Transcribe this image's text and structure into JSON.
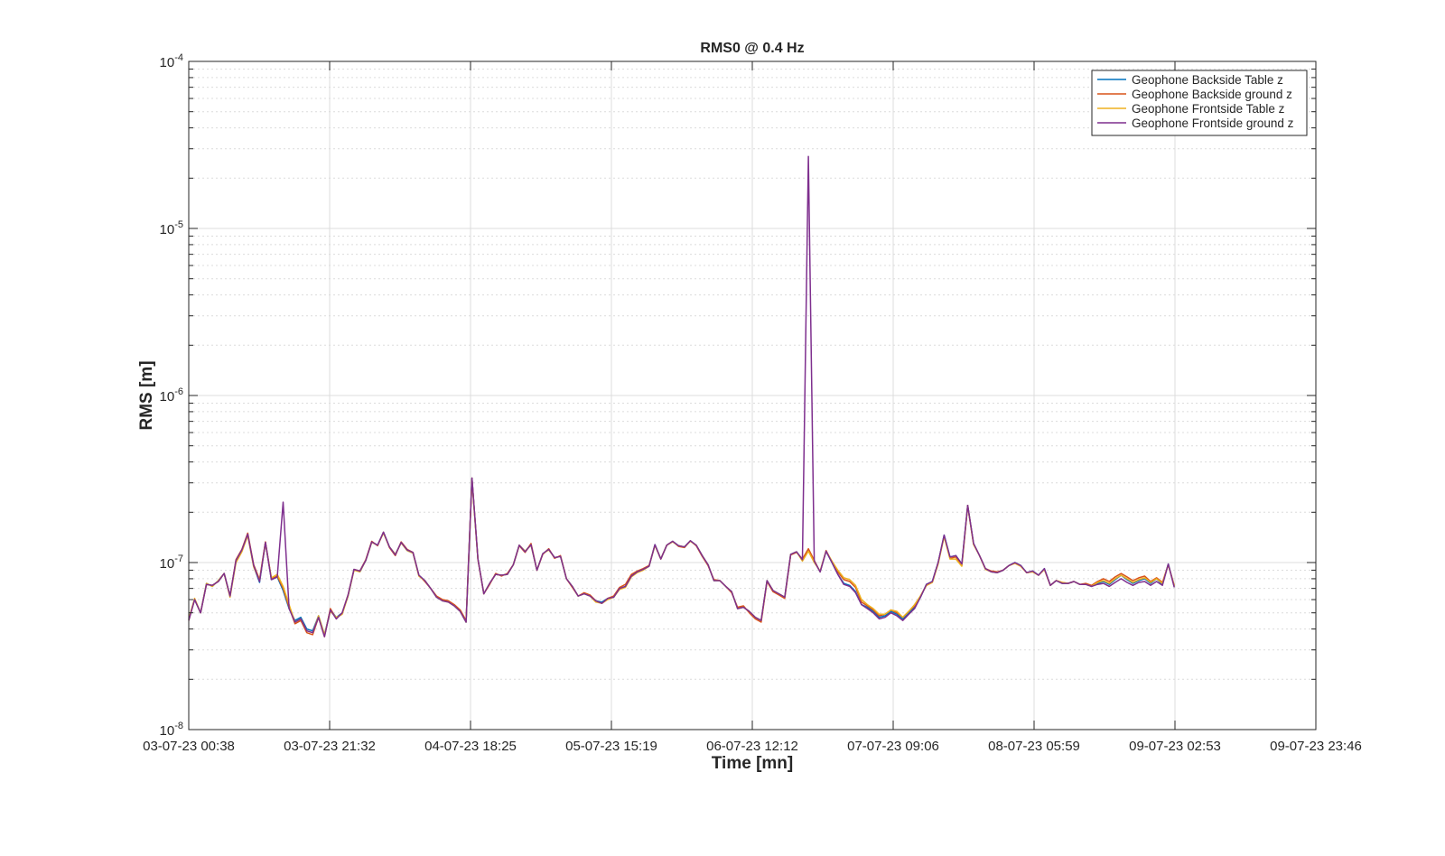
{
  "chart_data": {
    "type": "line",
    "title": "RMS0 @ 0.4 Hz",
    "xlabel": "Time [mn]",
    "ylabel": "RMS [m]",
    "yscale": "log",
    "ylim": [
      1e-08,
      0.0001
    ],
    "yticks": [
      {
        "value": 1e-08,
        "base": "10",
        "exp": "-8"
      },
      {
        "value": 1e-07,
        "base": "10",
        "exp": "-7"
      },
      {
        "value": 1e-06,
        "base": "10",
        "exp": "-6"
      },
      {
        "value": 1e-05,
        "base": "10",
        "exp": "-5"
      },
      {
        "value": 0.0001,
        "base": "10",
        "exp": "-4"
      }
    ],
    "xticks": [
      "03-07-23 00:38",
      "03-07-23 21:32",
      "04-07-23 18:25",
      "05-07-23 15:19",
      "06-07-23 12:12",
      "07-07-23 09:06",
      "08-07-23 05:59",
      "09-07-23 02:53",
      "09-07-23 23:46"
    ],
    "grid": true,
    "legend_position": "top-right",
    "x_hours": [
      0,
      0.875,
      1.75,
      2.625,
      3.5,
      4.375,
      5.25,
      6.125,
      7,
      7.875,
      8.75,
      9.625,
      10.5,
      11.375,
      12.25,
      13.125,
      14,
      14.875,
      15.75,
      16.625,
      17.5,
      18.375,
      19.25,
      20.125,
      21,
      21.875,
      22.75,
      23.625,
      24.5,
      25.375,
      26.25,
      27.125,
      28,
      28.875,
      29.75,
      30.625,
      31.5,
      32.375,
      33.25,
      34.125,
      35,
      35.875,
      36.75,
      37.625,
      38.5,
      39.375,
      40.25,
      41.125,
      42,
      42.875,
      43.75,
      44.625,
      45.5,
      46.375,
      47.25,
      48.125,
      49,
      49.875,
      50.75,
      51.625,
      52.5,
      53.375,
      54.25,
      55.125,
      56,
      56.875,
      57.75,
      58.625,
      59.5,
      60.375,
      61.25,
      62.125,
      63,
      63.875,
      64.75,
      65.625,
      66.5,
      67.375,
      68.25,
      69.125,
      70,
      70.875,
      71.75,
      72.625,
      73.5,
      74.375,
      75.25,
      76.125,
      77,
      77.875,
      78.75,
      79.625,
      80.5,
      81.375,
      82.25,
      83.125,
      84,
      84.875,
      85.75,
      86.625,
      87.5,
      88.375,
      89.25,
      90.125,
      91,
      91.875,
      92.75,
      93.625,
      94.5,
      95.375,
      96.25,
      97.125,
      98,
      98.875,
      99.75,
      100.625,
      101.5,
      102.375,
      103.25,
      104.125,
      105,
      105.875,
      106.75,
      107.625,
      108.5,
      109.375,
      110.25,
      111.125,
      112,
      112.875,
      113.75,
      114.625,
      115.5,
      116.375,
      117.25,
      118.125,
      119,
      119.875,
      120.75,
      121.625,
      122.5,
      123.375,
      124.25,
      125.125,
      126,
      126.875,
      127.75,
      128.625,
      129.5,
      130.375,
      131.25,
      132.125,
      133,
      133.875,
      134.75,
      135.625,
      136.5,
      137.375,
      138.25,
      139.125,
      140,
      140.875,
      141.75,
      142.625,
      143.5,
      144.375,
      145.25,
      146.125,
      147,
      147.875,
      148.75,
      149.625,
      150.5,
      151.375,
      152.25,
      153.125,
      154,
      154.875,
      155.75,
      156.625,
      157.5,
      158.375,
      159.25,
      160.125,
      161,
      161.875,
      162.75,
      163.625,
      164.5,
      165.375,
      166.25,
      167.125
    ],
    "series": [
      {
        "name": "Geophone Backside Table z",
        "color": "#0072BD",
        "values": [
          4.6e-08,
          6e-08,
          5e-08,
          7.5e-08,
          7.2e-08,
          7.8e-08,
          8.6e-08,
          6.3e-08,
          1.02e-07,
          1.17e-07,
          1.47e-07,
          9.5e-08,
          7.6e-08,
          1.32e-07,
          7.9e-08,
          8.2e-08,
          6.8e-08,
          5.3e-08,
          4.5e-08,
          4.7e-08,
          4e-08,
          3.9e-08,
          4.8e-08,
          3.7e-08,
          5.2e-08,
          4.7e-08,
          5e-08,
          6.3e-08,
          9.1e-08,
          8.8e-08,
          1.03e-07,
          1.33e-07,
          1.27e-07,
          1.52e-07,
          1.24e-07,
          1.12e-07,
          1.32e-07,
          1.18e-07,
          1.14e-07,
          8.4e-08,
          7.8e-08,
          7e-08,
          6.2e-08,
          5.9e-08,
          5.8e-08,
          5.5e-08,
          5.1e-08,
          4.4e-08,
          3.2e-07,
          1.05e-07,
          6.5e-08,
          7.5e-08,
          8.5e-08,
          8.4e-08,
          8.5e-08,
          9.7e-08,
          1.27e-07,
          1.17e-07,
          1.28e-07,
          9e-08,
          1.13e-07,
          1.2e-07,
          1.07e-07,
          1.09e-07,
          8e-08,
          7.2e-08,
          6.3e-08,
          6.5e-08,
          6.3e-08,
          5.9e-08,
          5.8e-08,
          6.1e-08,
          6.2e-08,
          7e-08,
          7.2e-08,
          8.3e-08,
          8.8e-08,
          9.1e-08,
          9.5e-08,
          1.28e-07,
          1.05e-07,
          1.27e-07,
          1.34e-07,
          1.26e-07,
          1.24e-07,
          1.35e-07,
          1.27e-07,
          1.1e-07,
          9.7e-08,
          7.8e-08,
          7.8e-08,
          7.2e-08,
          6.7e-08,
          5.3e-08,
          5.4e-08,
          5.1e-08,
          4.7e-08,
          4.5e-08,
          7.8e-08,
          6.8e-08,
          6.5e-08,
          6.2e-08,
          1.12e-07,
          1.16e-07,
          1.04e-07,
          1.19e-07,
          1.02e-07,
          8.8e-08,
          1.17e-07,
          1e-07,
          8.5e-08,
          7.5e-08,
          7.3e-08,
          6.7e-08,
          5.6e-08,
          5.4e-08,
          5.1e-08,
          4.7e-08,
          4.8e-08,
          5.1e-08,
          4.9e-08,
          4.6e-08,
          5e-08,
          5.4e-08,
          6.2e-08,
          7.4e-08,
          7.7e-08,
          1e-07,
          1.46e-07,
          1.08e-07,
          1.1e-07,
          9.8e-08,
          2.2e-07,
          1.3e-07,
          1.1e-07,
          9.2e-08,
          8.8e-08,
          8.7e-08,
          9e-08,
          9.6e-08,
          1e-07,
          9.6e-08,
          8.7e-08,
          8.9e-08,
          8.4e-08,
          9.2e-08,
          7.3e-08,
          7.8e-08,
          7.5e-08,
          7.5e-08,
          7.7e-08,
          7.4e-08,
          7.4e-08,
          7.2e-08,
          7.5e-08,
          7.7e-08,
          7.4e-08,
          7.9e-08,
          8.4e-08,
          7.9e-08,
          7.5e-08,
          7.8e-08,
          8e-08,
          7.5e-08,
          8e-08,
          7.4e-08,
          9.8e-08,
          7.2e-08
        ]
      },
      {
        "name": "Geophone Backside ground z",
        "color": "#D95319",
        "values": [
          4.5e-08,
          6e-08,
          5e-08,
          7.4e-08,
          7.3e-08,
          7.7e-08,
          8.6e-08,
          6.3e-08,
          1.04e-07,
          1.2e-07,
          1.5e-07,
          9.7e-08,
          7.9e-08,
          1.33e-07,
          8e-08,
          8.3e-08,
          7e-08,
          5.4e-08,
          4.3e-08,
          4.5e-08,
          3.8e-08,
          3.7e-08,
          4.7e-08,
          3.6e-08,
          5.3e-08,
          4.6e-08,
          5e-08,
          6.4e-08,
          9.1e-08,
          8.9e-08,
          1.04e-07,
          1.34e-07,
          1.26e-07,
          1.52e-07,
          1.23e-07,
          1.1e-07,
          1.33e-07,
          1.2e-07,
          1.15e-07,
          8.4e-08,
          7.7e-08,
          7e-08,
          6.3e-08,
          6e-08,
          5.9e-08,
          5.6e-08,
          5.2e-08,
          4.5e-08,
          3.2e-07,
          1.05e-07,
          6.5e-08,
          7.4e-08,
          8.6e-08,
          8.3e-08,
          8.6e-08,
          9.7e-08,
          1.26e-07,
          1.15e-07,
          1.3e-07,
          9e-08,
          1.12e-07,
          1.21e-07,
          1.06e-07,
          1.1e-07,
          8e-08,
          7.1e-08,
          6.3e-08,
          6.6e-08,
          6.4e-08,
          5.9e-08,
          5.7e-08,
          6.1e-08,
          6.3e-08,
          7.1e-08,
          7.4e-08,
          8.5e-08,
          8.9e-08,
          9.2e-08,
          9.6e-08,
          1.27e-07,
          1.05e-07,
          1.27e-07,
          1.34e-07,
          1.25e-07,
          1.23e-07,
          1.35e-07,
          1.26e-07,
          1.09e-07,
          9.6e-08,
          7.9e-08,
          7.8e-08,
          7.2e-08,
          6.6e-08,
          5.4e-08,
          5.5e-08,
          5e-08,
          4.6e-08,
          4.4e-08,
          7.7e-08,
          6.7e-08,
          6.4e-08,
          6.1e-08,
          1.11e-07,
          1.15e-07,
          1.05e-07,
          1.21e-07,
          1.03e-07,
          8.8e-08,
          1.18e-07,
          1.01e-07,
          8.8e-08,
          7.9e-08,
          7.7e-08,
          7.1e-08,
          5.8e-08,
          5.5e-08,
          5.2e-08,
          4.8e-08,
          4.9e-08,
          5.2e-08,
          5e-08,
          4.7e-08,
          5.1e-08,
          5.5e-08,
          6.3e-08,
          7.3e-08,
          7.6e-08,
          1e-07,
          1.44e-07,
          1.06e-07,
          1.08e-07,
          9.6e-08,
          2.2e-07,
          1.29e-07,
          1.1e-07,
          9.2e-08,
          8.9e-08,
          8.8e-08,
          9e-08,
          9.6e-08,
          9.9e-08,
          9.5e-08,
          8.7e-08,
          8.8e-08,
          8.4e-08,
          9.1e-08,
          7.3e-08,
          7.8e-08,
          7.6e-08,
          7.5e-08,
          7.7e-08,
          7.4e-08,
          7.5e-08,
          7.3e-08,
          7.7e-08,
          8e-08,
          7.7e-08,
          8.2e-08,
          8.6e-08,
          8.2e-08,
          7.8e-08,
          8.1e-08,
          8.3e-08,
          7.7e-08,
          8.1e-08,
          7.6e-08,
          9.7e-08,
          7.3e-08
        ]
      },
      {
        "name": "Geophone Frontside Table z",
        "color": "#EDB120",
        "values": [
          4.6e-08,
          6.1e-08,
          5e-08,
          7.5e-08,
          7.2e-08,
          7.8e-08,
          8.6e-08,
          6.2e-08,
          1e-07,
          1.16e-07,
          1.45e-07,
          9.4e-08,
          7.8e-08,
          1.3e-07,
          8.1e-08,
          8.5e-08,
          7.2e-08,
          5.6e-08,
          4.4e-08,
          4.6e-08,
          3.9e-08,
          3.8e-08,
          4.8e-08,
          3.7e-08,
          5.1e-08,
          4.7e-08,
          4.9e-08,
          6.3e-08,
          9e-08,
          8.8e-08,
          1.03e-07,
          1.32e-07,
          1.27e-07,
          1.5e-07,
          1.24e-07,
          1.12e-07,
          1.31e-07,
          1.18e-07,
          1.14e-07,
          8.3e-08,
          7.8e-08,
          7e-08,
          6.2e-08,
          5.9e-08,
          5.8e-08,
          5.5e-08,
          5.1e-08,
          4.4e-08,
          3.1e-07,
          1.04e-07,
          6.5e-08,
          7.5e-08,
          8.5e-08,
          8.4e-08,
          8.5e-08,
          9.7e-08,
          1.27e-07,
          1.17e-07,
          1.27e-07,
          9e-08,
          1.13e-07,
          1.19e-07,
          1.07e-07,
          1.09e-07,
          8e-08,
          7.2e-08,
          6.3e-08,
          6.5e-08,
          6.3e-08,
          5.8e-08,
          5.7e-08,
          6e-08,
          6.2e-08,
          6.9e-08,
          7.1e-08,
          8.2e-08,
          8.7e-08,
          9e-08,
          9.5e-08,
          1.27e-07,
          1.05e-07,
          1.27e-07,
          1.33e-07,
          1.26e-07,
          1.24e-07,
          1.34e-07,
          1.27e-07,
          1.1e-07,
          9.7e-08,
          7.8e-08,
          7.8e-08,
          7.2e-08,
          6.7e-08,
          5.3e-08,
          5.4e-08,
          5.1e-08,
          4.7e-08,
          4.5e-08,
          7.8e-08,
          6.8e-08,
          6.5e-08,
          6.2e-08,
          1.12e-07,
          1.16e-07,
          1.02e-07,
          1.17e-07,
          1e-07,
          8.9e-08,
          1.17e-07,
          1.02e-07,
          9e-08,
          8.1e-08,
          7.9e-08,
          7.3e-08,
          6e-08,
          5.6e-08,
          5.3e-08,
          4.9e-08,
          4.9e-08,
          5.2e-08,
          5.1e-08,
          4.7e-08,
          5.1e-08,
          5.6e-08,
          6.3e-08,
          7.3e-08,
          7.6e-08,
          9.8e-08,
          1.43e-07,
          1.05e-07,
          1.05e-07,
          9.5e-08,
          2.18e-07,
          1.28e-07,
          1.1e-07,
          9.1e-08,
          8.8e-08,
          8.7e-08,
          9e-08,
          9.6e-08,
          9.9e-08,
          9.5e-08,
          8.7e-08,
          8.8e-08,
          8.4e-08,
          9.1e-08,
          7.3e-08,
          7.8e-08,
          7.6e-08,
          7.5e-08,
          7.7e-08,
          7.4e-08,
          7.4e-08,
          7.2e-08,
          7.6e-08,
          7.8e-08,
          7.5e-08,
          8e-08,
          8.4e-08,
          8e-08,
          7.6e-08,
          7.9e-08,
          8.1e-08,
          7.6e-08,
          8e-08,
          7.5e-08,
          9.7e-08,
          7.2e-08
        ]
      },
      {
        "name": "Geophone Frontside ground z",
        "color": "#7E2F8E",
        "values": [
          4.5e-08,
          6e-08,
          5e-08,
          7.4e-08,
          7.3e-08,
          7.7e-08,
          8.6e-08,
          6.3e-08,
          1.03e-07,
          1.19e-07,
          1.48e-07,
          9.6e-08,
          7.7e-08,
          1.32e-07,
          7.9e-08,
          8.2e-08,
          2.3e-07,
          5.3e-08,
          4.4e-08,
          4.6e-08,
          3.9e-08,
          3.8e-08,
          4.7e-08,
          3.6e-08,
          5.2e-08,
          4.6e-08,
          5e-08,
          6.4e-08,
          9.1e-08,
          8.9e-08,
          1.03e-07,
          1.33e-07,
          1.27e-07,
          1.52e-07,
          1.24e-07,
          1.11e-07,
          1.32e-07,
          1.19e-07,
          1.15e-07,
          8.4e-08,
          7.8e-08,
          7e-08,
          6.2e-08,
          5.9e-08,
          5.8e-08,
          5.5e-08,
          5.1e-08,
          4.4e-08,
          3.2e-07,
          1.05e-07,
          6.5e-08,
          7.5e-08,
          8.5e-08,
          8.4e-08,
          8.5e-08,
          9.7e-08,
          1.27e-07,
          1.16e-07,
          1.28e-07,
          9e-08,
          1.13e-07,
          1.2e-07,
          1.07e-07,
          1.09e-07,
          8e-08,
          7.2e-08,
          6.3e-08,
          6.5e-08,
          6.3e-08,
          5.9e-08,
          5.7e-08,
          6.1e-08,
          6.2e-08,
          7e-08,
          7.2e-08,
          8.3e-08,
          8.8e-08,
          9.1e-08,
          9.5e-08,
          1.28e-07,
          1.05e-07,
          1.27e-07,
          1.34e-07,
          1.26e-07,
          1.24e-07,
          1.35e-07,
          1.27e-07,
          1.1e-07,
          9.7e-08,
          7.8e-08,
          7.8e-08,
          7.2e-08,
          6.7e-08,
          5.3e-08,
          5.4e-08,
          5.1e-08,
          4.7e-08,
          4.5e-08,
          7.8e-08,
          6.8e-08,
          6.5e-08,
          6.2e-08,
          1.12e-07,
          1.16e-07,
          1.04e-07,
          2.7e-05,
          1.02e-07,
          8.8e-08,
          1.17e-07,
          1e-07,
          8.5e-08,
          7.4e-08,
          7.2e-08,
          6.6e-08,
          5.6e-08,
          5.3e-08,
          5e-08,
          4.6e-08,
          4.7e-08,
          5e-08,
          4.8e-08,
          4.5e-08,
          4.9e-08,
          5.3e-08,
          6.2e-08,
          7.4e-08,
          7.7e-08,
          1e-07,
          1.46e-07,
          1.08e-07,
          1.1e-07,
          9.8e-08,
          2.2e-07,
          1.3e-07,
          1.1e-07,
          9.2e-08,
          8.8e-08,
          8.7e-08,
          9e-08,
          9.6e-08,
          1e-07,
          9.6e-08,
          8.7e-08,
          8.9e-08,
          8.4e-08,
          9.2e-08,
          7.3e-08,
          7.8e-08,
          7.5e-08,
          7.5e-08,
          7.7e-08,
          7.4e-08,
          7.4e-08,
          7.2e-08,
          7.4e-08,
          7.5e-08,
          7.2e-08,
          7.6e-08,
          8e-08,
          7.6e-08,
          7.3e-08,
          7.6e-08,
          7.7e-08,
          7.3e-08,
          7.7e-08,
          7.3e-08,
          9.8e-08,
          7.1e-08
        ]
      }
    ]
  }
}
